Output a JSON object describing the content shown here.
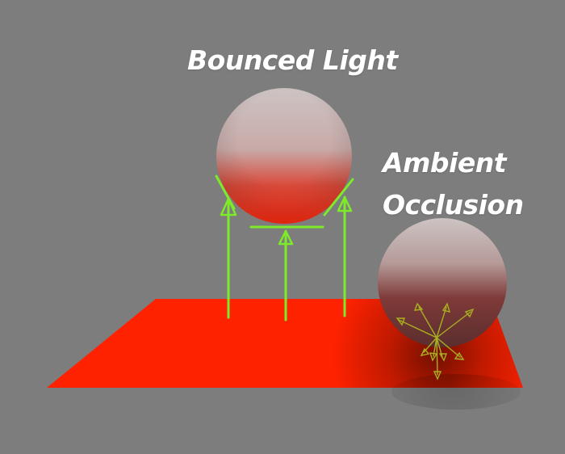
{
  "labels": {
    "bounced": "Bounced Light",
    "ambient_line1": "Ambient",
    "ambient_line2": "Occlusion"
  },
  "colors": {
    "background": "#7d7d7d",
    "plane": "#ff2200",
    "sphere_top": "#cfc5c3",
    "arrows": "#7dea2a",
    "occlusion_rays": "#a8b020"
  }
}
